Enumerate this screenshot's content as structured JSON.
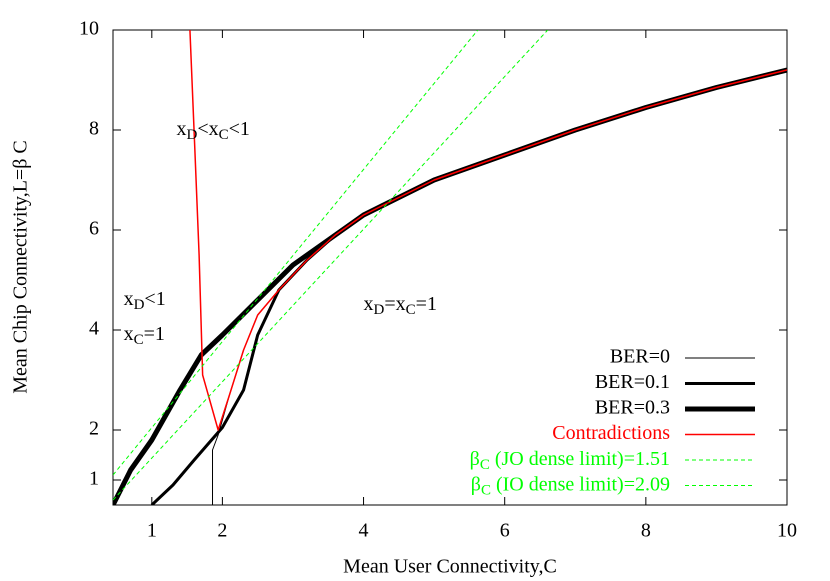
{
  "chart_data": {
    "type": "line",
    "xlabel": "Mean User Connectivity,C",
    "ylabel": "Mean Chip Connectivity,L=β C",
    "xlim": [
      0.45,
      10
    ],
    "ylim": [
      0.5,
      10
    ],
    "xticks": [
      1,
      2,
      4,
      6,
      8,
      10
    ],
    "yticks": [
      1,
      2,
      4,
      6,
      8,
      10
    ],
    "legend": "bottom-right",
    "series": [
      {
        "name": "BER=0",
        "color": "#000000",
        "width": 1,
        "x": [
          1.86,
          1.86,
          1.94,
          2.1,
          2.3,
          2.5,
          2.8,
          3.2,
          3.6,
          4,
          5,
          6,
          7,
          8,
          9,
          10
        ],
        "values": [
          0.5,
          1.6,
          1.9,
          2.7,
          3.6,
          4.3,
          4.8,
          5.4,
          5.9,
          6.3,
          7.0,
          7.5,
          8.0,
          8.45,
          8.85,
          9.2
        ]
      },
      {
        "name": "BER=0.1",
        "color": "#000000",
        "width": 3,
        "x": [
          1.0,
          1.3,
          1.6,
          2.0,
          2.3,
          2.5,
          2.8,
          3.2,
          3.6,
          4,
          5,
          6,
          7,
          8,
          9,
          10
        ],
        "values": [
          0.5,
          0.9,
          1.4,
          2.05,
          2.8,
          3.9,
          4.8,
          5.4,
          5.9,
          6.3,
          7.0,
          7.5,
          8.0,
          8.45,
          8.85,
          9.2
        ]
      },
      {
        "name": "BER=0.3",
        "color": "#000000",
        "width": 5,
        "x": [
          0.45,
          0.7,
          1,
          1.4,
          1.7,
          2,
          2.5,
          3,
          3.5,
          4,
          5,
          6,
          7,
          8,
          9,
          10
        ],
        "values": [
          0.5,
          1.2,
          1.8,
          2.8,
          3.5,
          3.9,
          4.6,
          5.3,
          5.8,
          6.3,
          7.0,
          7.5,
          8.0,
          8.45,
          8.85,
          9.2
        ]
      },
      {
        "name": "Contradictions",
        "color": "#ff0000",
        "width": 1.5,
        "x": [
          1.54,
          1.61,
          1.67,
          1.72,
          1.94,
          2.1,
          2.3,
          2.5,
          2.8,
          3.2,
          3.6,
          4,
          5,
          6,
          7,
          8,
          9,
          10
        ],
        "values": [
          10,
          7.6,
          5.5,
          3.1,
          2.0,
          2.7,
          3.6,
          4.3,
          4.8,
          5.4,
          5.9,
          6.3,
          7.0,
          7.5,
          8.0,
          8.45,
          8.85,
          9.2
        ]
      },
      {
        "name": [
          "β",
          "C",
          " (JO dense limit)=1.51"
        ],
        "color": "#00ff00",
        "width": 1,
        "dashed": true,
        "x": [
          0.45,
          6.61
        ],
        "values": [
          0.6,
          10
        ]
      },
      {
        "name": [
          "β",
          "C",
          " (IO dense limit)=2.09"
        ],
        "color": "#00ff00",
        "width": 1,
        "dashed": true,
        "x": [
          0.45,
          5.62
        ],
        "values": [
          1.1,
          10
        ]
      }
    ],
    "annotations": [
      {
        "text": [
          "x",
          "D",
          "<x",
          "C",
          "<1"
        ],
        "x": 1.35,
        "y": 8.0
      },
      {
        "text": [
          "x",
          "D",
          "<1"
        ],
        "x": 0.6,
        "y": 4.6
      },
      {
        "text": [
          "x",
          "C",
          "=1"
        ],
        "x": 0.6,
        "y": 3.9
      },
      {
        "text": [
          "x",
          "D",
          "=x",
          "C",
          "=1"
        ],
        "x": 4.0,
        "y": 4.5
      }
    ]
  }
}
